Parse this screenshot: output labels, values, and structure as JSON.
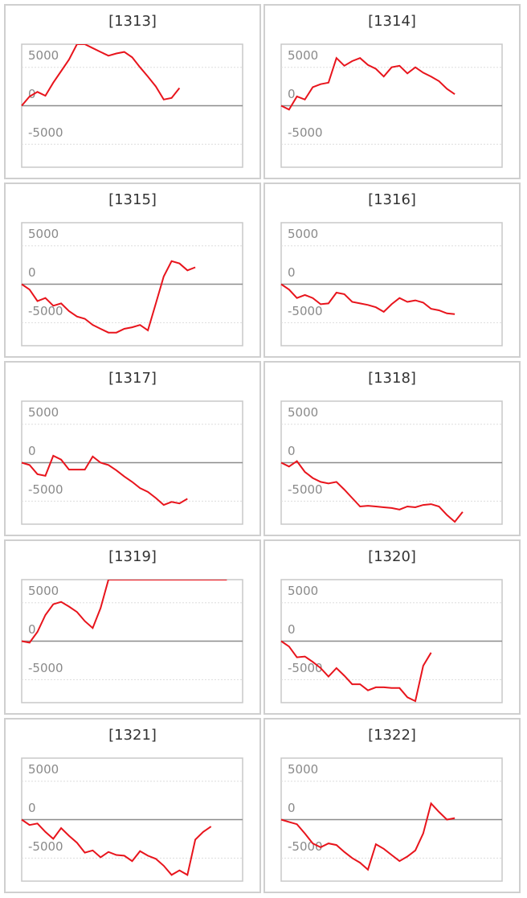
{
  "chart_data": [
    {
      "type": "line",
      "title": "[1313]",
      "color": "#e8141c",
      "ylim": [
        -8000,
        8000
      ],
      "yticks": [
        -5000,
        0,
        5000
      ],
      "grid": true,
      "values": [
        0,
        1200,
        1800,
        1300,
        3000,
        4500,
        6000,
        8000,
        8000,
        7500,
        7000,
        6500,
        6800,
        7000,
        6300,
        5000,
        3800,
        2500,
        800,
        1000,
        2300
      ]
    },
    {
      "type": "line",
      "title": "[1314]",
      "color": "#e8141c",
      "ylim": [
        -8000,
        8000
      ],
      "yticks": [
        -5000,
        0,
        5000
      ],
      "grid": true,
      "values": [
        0,
        -500,
        1200,
        800,
        2400,
        2800,
        3000,
        6200,
        5200,
        5800,
        6200,
        5300,
        4800,
        3800,
        5000,
        5200,
        4200,
        5000,
        4300,
        3800,
        3200,
        2200,
        1500
      ]
    },
    {
      "type": "line",
      "title": "[1315]",
      "color": "#e8141c",
      "ylim": [
        -8000,
        8000
      ],
      "yticks": [
        -5000,
        0,
        5000
      ],
      "grid": true,
      "values": [
        0,
        -700,
        -2200,
        -1800,
        -2800,
        -2500,
        -3500,
        -4200,
        -4500,
        -5300,
        -5800,
        -6300,
        -6300,
        -5800,
        -5600,
        -5300,
        -6000,
        -2500,
        1000,
        3000,
        2700,
        1800,
        2200
      ]
    },
    {
      "type": "line",
      "title": "[1316]",
      "color": "#e8141c",
      "ylim": [
        -8000,
        8000
      ],
      "yticks": [
        -5000,
        0,
        5000
      ],
      "grid": true,
      "values": [
        0,
        -700,
        -1800,
        -1400,
        -1800,
        -2600,
        -2500,
        -1100,
        -1300,
        -2300,
        -2500,
        -2700,
        -3000,
        -3600,
        -2600,
        -1800,
        -2300,
        -2100,
        -2400,
        -3200,
        -3400,
        -3800,
        -3900
      ]
    },
    {
      "type": "line",
      "title": "[1317]",
      "color": "#e8141c",
      "ylim": [
        -8000,
        8000
      ],
      "yticks": [
        -5000,
        0,
        5000
      ],
      "grid": true,
      "values": [
        0,
        -300,
        -1500,
        -1700,
        900,
        400,
        -900,
        -900,
        -900,
        800,
        0,
        -300,
        -1000,
        -1800,
        -2500,
        -3300,
        -3800,
        -4600,
        -5500,
        -5100,
        -5300,
        -4700
      ]
    },
    {
      "type": "line",
      "title": "[1318]",
      "color": "#e8141c",
      "ylim": [
        -8000,
        8000
      ],
      "yticks": [
        -5000,
        0,
        5000
      ],
      "grid": true,
      "values": [
        0,
        -500,
        200,
        -1200,
        -2000,
        -2500,
        -2700,
        -2500,
        -3500,
        -4600,
        -5700,
        -5600,
        -5700,
        -5800,
        -5900,
        -6100,
        -5700,
        -5800,
        -5500,
        -5400,
        -5700,
        -6800,
        -7700,
        -6400
      ]
    },
    {
      "type": "line",
      "title": "[1319]",
      "color": "#e8141c",
      "ylim": [
        -8000,
        8000
      ],
      "yticks": [
        -5000,
        0,
        5000
      ],
      "grid": true,
      "values": [
        0,
        -200,
        1200,
        3400,
        4800,
        5100,
        4500,
        3800,
        2600,
        1700,
        4300,
        8000,
        8000,
        8000,
        8000,
        8000,
        8000,
        8000,
        8000,
        8000,
        8000,
        8000,
        8000,
        8000,
        8000,
        8000,
        8000
      ]
    },
    {
      "type": "line",
      "title": "[1320]",
      "color": "#e8141c",
      "ylim": [
        -8000,
        8000
      ],
      "yticks": [
        -5000,
        0,
        5000
      ],
      "grid": true,
      "values": [
        0,
        -700,
        -2100,
        -2000,
        -2700,
        -3500,
        -4600,
        -3500,
        -4500,
        -5600,
        -5600,
        -6400,
        -6000,
        -6000,
        -6100,
        -6100,
        -7300,
        -7800,
        -3200,
        -1500
      ]
    },
    {
      "type": "line",
      "title": "[1321]",
      "color": "#e8141c",
      "ylim": [
        -8000,
        8000
      ],
      "yticks": [
        -5000,
        0,
        5000
      ],
      "grid": true,
      "values": [
        0,
        -700,
        -500,
        -1600,
        -2500,
        -1100,
        -2100,
        -3000,
        -4300,
        -4000,
        -4900,
        -4200,
        -4600,
        -4700,
        -5400,
        -4100,
        -4700,
        -5100,
        -6000,
        -7200,
        -6600,
        -7200,
        -2600,
        -1600,
        -900
      ]
    },
    {
      "type": "line",
      "title": "[1322]",
      "color": "#e8141c",
      "ylim": [
        -8000,
        8000
      ],
      "yticks": [
        -5000,
        0,
        5000
      ],
      "grid": true,
      "values": [
        0,
        -300,
        -600,
        -1800,
        -3100,
        -3600,
        -3100,
        -3300,
        -4200,
        -5000,
        -5600,
        -6500,
        -3200,
        -3800,
        -4600,
        -5400,
        -4800,
        -4000,
        -1800,
        2100,
        1000,
        0,
        200
      ]
    }
  ]
}
